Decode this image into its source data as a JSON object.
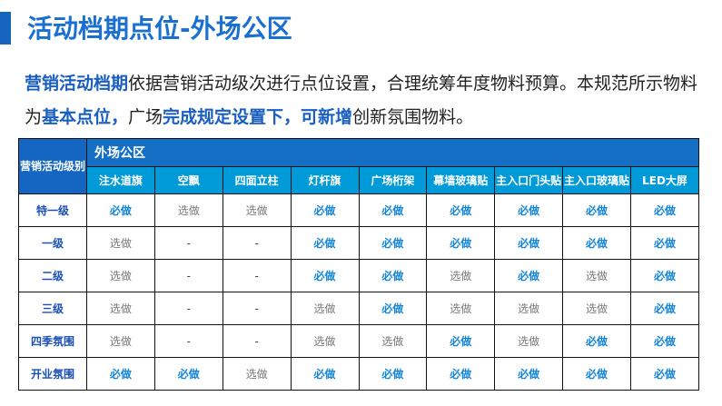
{
  "title": "活动档期点位-外场公区",
  "intro": {
    "segments": [
      {
        "text": "营销活动档期",
        "highlight": true
      },
      {
        "text": "依据营销活动级次进行点位设置，合理统筹年度物料预算。本规范所示物料为",
        "highlight": false
      },
      {
        "text": "基本点位，",
        "highlight": true
      },
      {
        "text": "广场",
        "highlight": false
      },
      {
        "text": "完成规定设置下，可新增",
        "highlight": true
      },
      {
        "text": "创新氛围物料。",
        "highlight": false
      }
    ]
  },
  "table": {
    "corner": "营销活动级别",
    "zone": "外场公区",
    "columns": [
      "注水道旗",
      "空飘",
      "四面立柱",
      "灯杆旗",
      "广场桁架",
      "幕墙玻璃贴",
      "主入口门头贴",
      "主入口玻璃贴",
      "LED大屏"
    ],
    "rows": [
      {
        "level": "特一级",
        "cells": [
          "必做",
          "选做",
          "选做",
          "必做",
          "必做",
          "必做",
          "必做",
          "必做",
          "必做"
        ]
      },
      {
        "level": "一级",
        "cells": [
          "选做",
          "-",
          "-",
          "必做",
          "必做",
          "必做",
          "必做",
          "必做",
          "必做"
        ]
      },
      {
        "level": "二级",
        "cells": [
          "选做",
          "-",
          "-",
          "必做",
          "必做",
          "选做",
          "必做",
          "选做",
          "必做"
        ]
      },
      {
        "level": "三级",
        "cells": [
          "选做",
          "-",
          "-",
          "选做",
          "必做",
          "选做",
          "选做",
          "选做",
          "必做"
        ]
      },
      {
        "level": "四季氛围",
        "cells": [
          "选做",
          "-",
          "-",
          "选做",
          "选做",
          "必做",
          "选做",
          "必做",
          "必做"
        ]
      },
      {
        "level": "开业氛围",
        "cells": [
          "必做",
          "必做",
          "选做",
          "必做",
          "必做",
          "必做",
          "必做",
          "必做",
          "必做"
        ]
      }
    ]
  },
  "colors": {
    "accent": "#1a6fd0",
    "header": "#1570c5",
    "subheader": "#009ad8",
    "must": "#1585d8",
    "optional": "#777777"
  }
}
